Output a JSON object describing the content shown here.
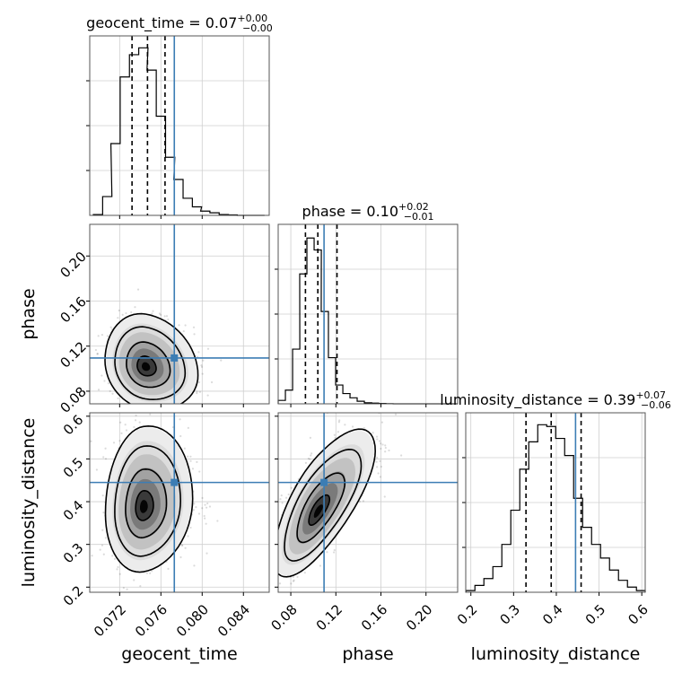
{
  "chart_data": {
    "type": "corner",
    "parameters": [
      "geocent_time",
      "phase",
      "luminosity_distance"
    ],
    "truths": {
      "geocent_time": 0.0773,
      "phase": 0.1095,
      "luminosity_distance": 0.445
    },
    "panel_titles": {
      "geocent_time": {
        "name": "geocent_time",
        "median": "0.07",
        "plus": "+0.00",
        "minus": "−0.00"
      },
      "phase": {
        "name": "phase",
        "median": "0.10",
        "plus": "+0.02",
        "minus": "−0.01"
      },
      "luminosity_distance": {
        "name": "luminosity_distance",
        "median": "0.39",
        "plus": "+0.07",
        "minus": "−0.06"
      }
    },
    "axes": {
      "geocent_time": {
        "label": "geocent_time",
        "range": [
          0.0691,
          0.0865
        ],
        "ticks": [
          0.072,
          0.076,
          0.08,
          0.084
        ],
        "tick_labels": [
          "0.072",
          "0.076",
          "0.080",
          "0.084"
        ]
      },
      "phase": {
        "label": "phase",
        "range": [
          0.0688,
          0.2281
        ],
        "ticks": [
          0.08,
          0.12,
          0.16,
          0.2
        ],
        "tick_labels": [
          "0.08",
          "0.12",
          "0.16",
          "0.20"
        ]
      },
      "luminosity_distance": {
        "label": "luminosity_distance",
        "range": [
          0.188,
          0.608
        ],
        "ticks": [
          0.2,
          0.3,
          0.4,
          0.5,
          0.6
        ],
        "tick_labels": [
          "0.2",
          "0.3",
          "0.4",
          "0.5",
          "0.6"
        ]
      }
    },
    "histograms": {
      "geocent_time": {
        "x": [
          0.0699,
          0.0708,
          0.0716,
          0.0725,
          0.0734,
          0.0743,
          0.0751,
          0.076,
          0.0769,
          0.0777,
          0.0786,
          0.0795,
          0.0803,
          0.0812,
          0.0821,
          0.083,
          0.0838,
          0.0847,
          0.0856
        ],
        "counts": [
          0.005,
          0.11,
          0.42,
          0.81,
          0.94,
          0.98,
          0.85,
          0.58,
          0.34,
          0.21,
          0.1,
          0.05,
          0.025,
          0.015,
          0.005,
          0.003,
          0.0,
          0.0,
          0.0
        ],
        "quantiles": [
          0.0732,
          0.0747,
          0.0764
        ]
      },
      "phase": {
        "x": [
          0.072,
          0.0784,
          0.0848,
          0.0911,
          0.0975,
          0.1039,
          0.1102,
          0.1166,
          0.123,
          0.1294,
          0.1357,
          0.1421,
          0.1485,
          0.1548,
          0.1612,
          0.1676,
          0.174,
          0.1803,
          0.1867,
          0.1931,
          0.1994,
          0.2058,
          0.2122,
          0.2186,
          0.2249
        ],
        "counts": [
          0.02,
          0.08,
          0.32,
          0.76,
          0.97,
          0.9,
          0.54,
          0.27,
          0.11,
          0.06,
          0.035,
          0.015,
          0.006,
          0.004,
          0.002,
          0.001,
          0.0,
          0.0,
          0.0,
          0.0,
          0.0,
          0.0,
          0.0,
          0.0,
          0.0
        ],
        "quantiles": [
          0.093,
          0.104,
          0.121
        ]
      },
      "luminosity_distance": {
        "x": [
          0.199,
          0.22,
          0.241,
          0.262,
          0.283,
          0.304,
          0.325,
          0.346,
          0.367,
          0.388,
          0.409,
          0.43,
          0.451,
          0.472,
          0.493,
          0.514,
          0.535,
          0.556,
          0.577,
          0.598
        ],
        "counts": [
          0.01,
          0.04,
          0.08,
          0.15,
          0.28,
          0.48,
          0.72,
          0.88,
          0.98,
          0.97,
          0.9,
          0.8,
          0.55,
          0.38,
          0.28,
          0.2,
          0.13,
          0.07,
          0.03,
          0.01
        ],
        "quantiles": [
          0.329,
          0.388,
          0.458
        ]
      }
    },
    "joint": [
      {
        "x_param": "geocent_time",
        "y_param": "phase",
        "center": [
          0.0745,
          0.1015
        ],
        "sd": [
          0.0016,
          0.0155
        ],
        "rho": -0.15
      },
      {
        "x_param": "geocent_time",
        "y_param": "luminosity_distance",
        "center": [
          0.0743,
          0.387
        ],
        "sd": [
          0.0015,
          0.062
        ],
        "rho": 0.1
      },
      {
        "x_param": "phase",
        "y_param": "luminosity_distance",
        "center": [
          0.104,
          0.376
        ],
        "sd": [
          0.016,
          0.062
        ],
        "rho": 0.72
      }
    ],
    "grid": true,
    "legend": "none"
  }
}
